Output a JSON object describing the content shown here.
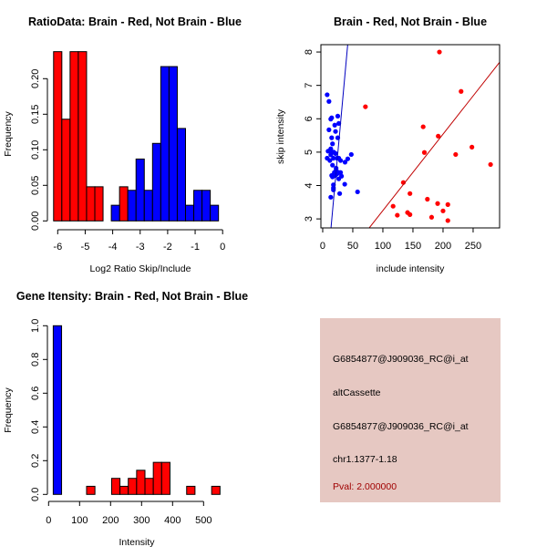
{
  "colors": {
    "brain": "#ff0000",
    "not_brain": "#0000ff",
    "panel_bg": "#e6c8c2",
    "pval": "#a00000"
  },
  "chart_data": [
    {
      "type": "bar",
      "title": "RatioData: Brain - Red, Not Brain - Blue",
      "xlabel": "Log2 Ratio Skip/Include",
      "ylabel": "Frequency",
      "xticks": [
        -6,
        -5,
        -4,
        -3,
        -2,
        -1,
        0
      ],
      "yticks": [
        "0.00",
        "0.05",
        "0.10",
        "0.15",
        "0.20"
      ],
      "xlim": [
        -6.15,
        -0.15
      ],
      "ylim": [
        0,
        0.24
      ],
      "bin_width": 0.3,
      "series": [
        {
          "name": "Brain",
          "color": "red",
          "bins": [
            {
              "start": -6.15,
              "value": 0.238
            },
            {
              "start": -5.85,
              "value": 0.143
            },
            {
              "start": -5.55,
              "value": 0.238
            },
            {
              "start": -5.25,
              "value": 0.238
            },
            {
              "start": -4.95,
              "value": 0.048
            },
            {
              "start": -4.65,
              "value": 0.048
            },
            {
              "start": -4.35,
              "value": 0
            },
            {
              "start": -3.75,
              "value": 0.048
            }
          ]
        },
        {
          "name": "Not Brain",
          "color": "blue",
          "bins": [
            {
              "start": -4.05,
              "value": 0.022
            },
            {
              "start": -3.45,
              "value": 0.043
            },
            {
              "start": -3.15,
              "value": 0.087
            },
            {
              "start": -2.85,
              "value": 0.043
            },
            {
              "start": -2.55,
              "value": 0.109
            },
            {
              "start": -2.25,
              "value": 0.217
            },
            {
              "start": -1.95,
              "value": 0.217
            },
            {
              "start": -1.65,
              "value": 0.13
            },
            {
              "start": -1.35,
              "value": 0.022
            },
            {
              "start": -1.05,
              "value": 0.043
            },
            {
              "start": -0.75,
              "value": 0.043
            },
            {
              "start": -0.45,
              "value": 0.022
            }
          ]
        }
      ]
    },
    {
      "type": "scatter",
      "title": "Brain - Red, Not Brain - Blue",
      "xlabel": "include intensity",
      "ylabel": "skip intensity",
      "xticks": [
        0,
        50,
        100,
        150,
        200,
        250
      ],
      "yticks": [
        3,
        4,
        5,
        6,
        7,
        8
      ],
      "xlim": [
        -3,
        294
      ],
      "ylim": [
        2.73,
        8.22
      ],
      "series": [
        {
          "name": "Brain",
          "color": "red",
          "fit": {
            "intercept": 0.96,
            "slope": 0.0229
          },
          "points": [
            [
              194,
              8.0
            ],
            [
              230,
              6.82
            ],
            [
              71,
              6.36
            ],
            [
              167,
              5.76
            ],
            [
              192,
              5.48
            ],
            [
              169,
              4.99
            ],
            [
              248,
              5.15
            ],
            [
              221,
              4.93
            ],
            [
              279,
              4.63
            ],
            [
              134,
              4.09
            ],
            [
              145,
              3.76
            ],
            [
              174,
              3.59
            ],
            [
              191,
              3.46
            ],
            [
              208,
              3.43
            ],
            [
              200,
              3.24
            ],
            [
              117,
              3.38
            ],
            [
              124,
              3.11
            ],
            [
              141,
              3.19
            ],
            [
              145,
              3.13
            ],
            [
              181,
              3.05
            ],
            [
              208,
              2.95
            ]
          ]
        },
        {
          "name": "Not Brain",
          "color": "blue",
          "fit": {
            "intercept": 0.0,
            "slope": 0.198
          },
          "points": [
            [
              7.4,
              6.72
            ],
            [
              10.4,
              6.52
            ],
            [
              13.4,
              5.99
            ],
            [
              14.9,
              6.03
            ],
            [
              25,
              6.08
            ],
            [
              26.7,
              5.86
            ],
            [
              20,
              5.81
            ],
            [
              10.4,
              5.67
            ],
            [
              21.3,
              5.62
            ],
            [
              14.9,
              5.43
            ],
            [
              25,
              5.43
            ],
            [
              16.3,
              5.25
            ],
            [
              13.4,
              5.1
            ],
            [
              8.9,
              5.03
            ],
            [
              14.9,
              4.99
            ],
            [
              21.3,
              4.96
            ],
            [
              47.5,
              4.93
            ],
            [
              7.4,
              4.82
            ],
            [
              11.9,
              4.75
            ],
            [
              17.8,
              4.82
            ],
            [
              23.8,
              4.82
            ],
            [
              26.7,
              4.82
            ],
            [
              41.6,
              4.8
            ],
            [
              37.1,
              4.7
            ],
            [
              16.3,
              4.61
            ],
            [
              22.3,
              4.52
            ],
            [
              19.3,
              4.39
            ],
            [
              26.7,
              4.39
            ],
            [
              14.9,
              4.3
            ],
            [
              20.8,
              4.3
            ],
            [
              31.2,
              4.28
            ],
            [
              16.3,
              4.26
            ],
            [
              26.7,
              4.2
            ],
            [
              23.8,
              4.35
            ],
            [
              17.8,
              4.02
            ],
            [
              17.8,
              3.93
            ],
            [
              17.8,
              3.87
            ],
            [
              36.6,
              4.04
            ],
            [
              28.2,
              3.76
            ],
            [
              13.4,
              3.65
            ],
            [
              57.9,
              3.81
            ],
            [
              22.3,
              4.46
            ],
            [
              29.7,
              4.39
            ],
            [
              13.4,
              4.92
            ],
            [
              18.3,
              5.0
            ],
            [
              29.7,
              4.75
            ]
          ]
        }
      ]
    },
    {
      "type": "bar",
      "title": "Gene Itensity: Brain - Red, Not Brain - Blue",
      "xlabel": "Intensity",
      "ylabel": "Frequency",
      "xticks": [
        0,
        100,
        200,
        300,
        400,
        500
      ],
      "yticks": [
        "0.0",
        "0.2",
        "0.4",
        "0.6",
        "0.8",
        "1.0"
      ],
      "xlim": [
        15,
        553
      ],
      "ylim": [
        0,
        1.0
      ],
      "bin_width": 26.9,
      "series": [
        {
          "name": "Not Brain",
          "color": "blue",
          "bins": [
            {
              "start": 15,
              "value": 1.0
            }
          ]
        },
        {
          "name": "Brain",
          "color": "red",
          "bins": [
            {
              "start": 41.9,
              "value": 0
            },
            {
              "start": 68.8,
              "value": 0
            },
            {
              "start": 95.7,
              "value": 0
            },
            {
              "start": 122.6,
              "value": 0.048
            },
            {
              "start": 149.5,
              "value": 0
            },
            {
              "start": 176.4,
              "value": 0
            },
            {
              "start": 203.3,
              "value": 0.095
            },
            {
              "start": 230.2,
              "value": 0.048
            },
            {
              "start": 257.1,
              "value": 0.095
            },
            {
              "start": 284.0,
              "value": 0.143
            },
            {
              "start": 310.9,
              "value": 0.095
            },
            {
              "start": 337.8,
              "value": 0.19
            },
            {
              "start": 364.7,
              "value": 0.19
            },
            {
              "start": 391.6,
              "value": 0
            },
            {
              "start": 418.5,
              "value": 0
            },
            {
              "start": 445.4,
              "value": 0.048
            },
            {
              "start": 472.3,
              "value": 0
            },
            {
              "start": 499.2,
              "value": 0
            },
            {
              "start": 526.1,
              "value": 0.048
            }
          ]
        }
      ]
    }
  ],
  "info_panel": {
    "lines": [
      "G6854877@J909036_RC@i_at",
      "altCassette",
      "G6854877@J909036_RC@i_at",
      "chr1.1377-1.18"
    ],
    "pval": "Pval: 2.000000"
  }
}
